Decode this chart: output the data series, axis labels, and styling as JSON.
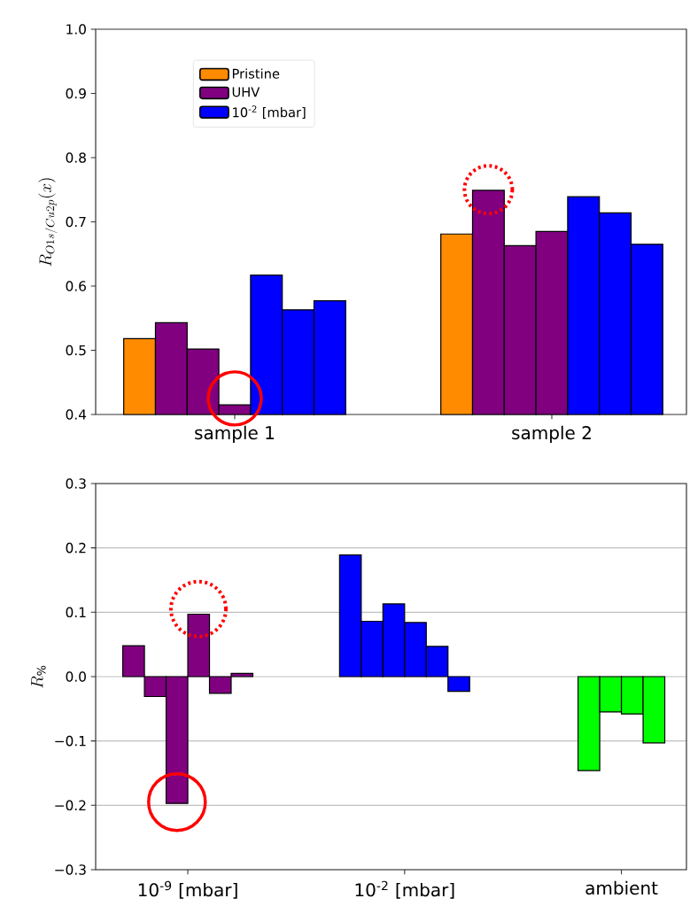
{
  "chart_data": [
    {
      "type": "bar",
      "ylabel": "R_{O1s/Cu2p}(x)",
      "categories": [
        "sample 1",
        "sample 2"
      ],
      "ylim": [
        0.4,
        1.0
      ],
      "yticks": [
        0.4,
        0.5,
        0.6,
        0.7,
        0.8,
        0.9,
        {
          "value": 1.0,
          "label": "1.0"
        }
      ],
      "legend": "top left",
      "series": [
        {
          "name": "Pristine",
          "color": "#ff8c00",
          "values": [
            0.518,
            0.681
          ]
        },
        {
          "name": "UHV",
          "color": "#800080",
          "values": [
            0.543,
            0.749
          ]
        },
        {
          "color": "#800080",
          "values": [
            0.502,
            0.663
          ]
        },
        {
          "color": "#800080",
          "values": [
            0.415,
            0.685
          ]
        },
        {
          "name": "10$^{-2}$ [mbar]",
          "color": "#0000ff",
          "values": [
            0.617,
            0.739
          ]
        },
        {
          "color": "#0000ff",
          "values": [
            0.563,
            0.714
          ]
        },
        {
          "color": "#0000ff",
          "values": [
            0.577,
            0.665
          ]
        }
      ]
    },
    {
      "type": "bar",
      "ylabel": "R_{\\%}",
      "categories": [
        "10$^{-9}$ [mbar]",
        "10$^{-2}$ [mbar]",
        "ambient"
      ],
      "ylim": [
        -0.3,
        0.3
      ],
      "yticks": [
        {
          "value": -0.3,
          "label": "−0.3"
        },
        {
          "value": -0.2,
          "label": "−0.2"
        },
        {
          "value": -0.1,
          "label": "−0.1"
        },
        {
          "value": 0.0,
          "label": "0.0"
        },
        0.1,
        0.2,
        0.3
      ],
      "grid": "y",
      "series": [
        {
          "colors": [
            "#800080",
            "#0000ff",
            "#00ff00"
          ],
          "values": [
            0.048,
            0.189,
            -0.146
          ]
        },
        {
          "colors": [
            "#800080",
            "#0000ff",
            "#00ff00"
          ],
          "values": [
            -0.031,
            0.086,
            -0.055
          ]
        },
        {
          "colors": [
            "#800080",
            "#0000ff",
            "#00ff00"
          ],
          "values": [
            -0.197,
            0.113,
            -0.058
          ]
        },
        {
          "colors": [
            "#800080",
            "#0000ff",
            "#00ff00"
          ],
          "values": [
            0.097,
            0.084,
            -0.103
          ]
        },
        {
          "colors": [
            "#800080",
            "#0000ff",
            "#00ff00"
          ],
          "values": [
            -0.026,
            0.047,
            null
          ]
        },
        {
          "colors": [
            "#800080",
            "#0000ff",
            "#00ff00"
          ],
          "values": [
            0.005,
            -0.023,
            null
          ]
        }
      ]
    }
  ]
}
